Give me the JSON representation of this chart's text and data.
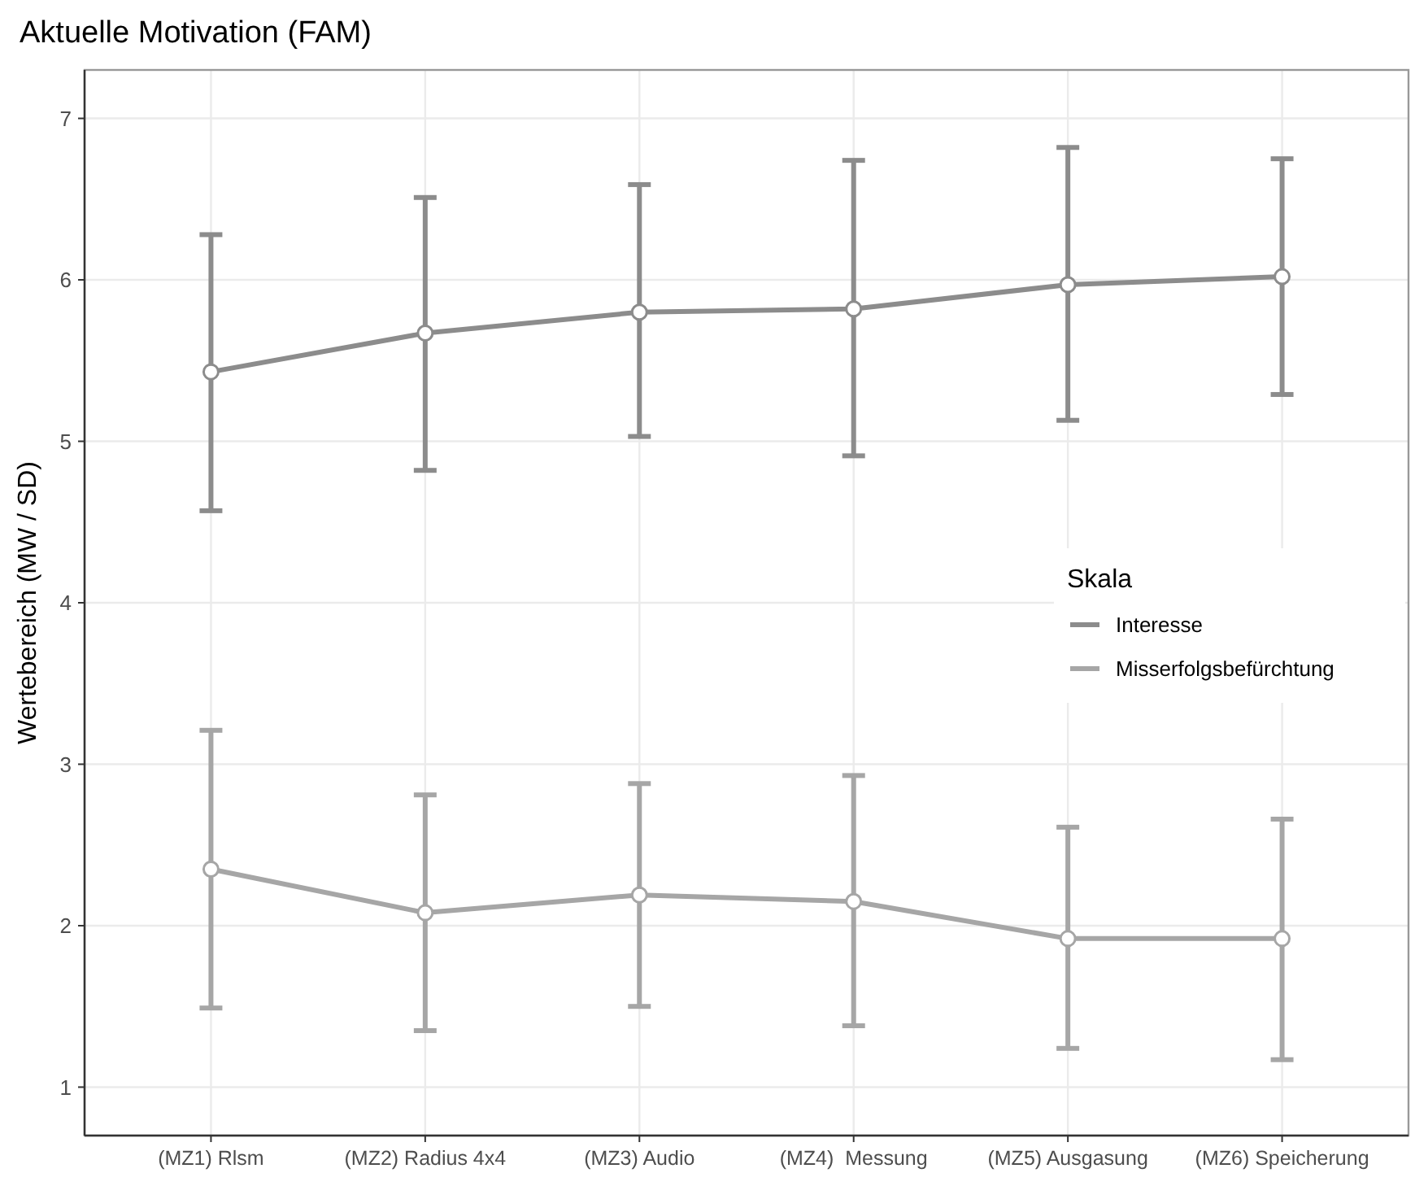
{
  "chart_data": {
    "type": "line",
    "title": "Aktuelle Motivation (FAM)",
    "ylabel": "Wertebereich (MW / SD)",
    "legend_title": "Skala",
    "categories": [
      "(MZ1) Rlsm",
      "(MZ2) Radius 4x4",
      "(MZ3) Audio",
      "(MZ4)  Messung",
      "(MZ5) Ausgasung",
      "(MZ6) Speicherung"
    ],
    "series": [
      {
        "name": "Interesse",
        "color": "#8c8c8c",
        "values": [
          5.43,
          5.67,
          5.8,
          5.82,
          5.97,
          6.02
        ],
        "errors": [
          [
            4.57,
            6.28
          ],
          [
            4.82,
            6.51
          ],
          [
            5.03,
            6.59
          ],
          [
            4.91,
            6.74
          ],
          [
            5.13,
            6.82
          ],
          [
            5.29,
            6.75
          ]
        ]
      },
      {
        "name": "Misserfolgsbefürchtung",
        "color": "#a6a6a6",
        "values": [
          2.35,
          2.08,
          2.19,
          2.15,
          1.92,
          1.92
        ],
        "errors": [
          [
            1.49,
            3.21
          ],
          [
            1.35,
            2.81
          ],
          [
            1.5,
            2.88
          ],
          [
            1.38,
            2.93
          ],
          [
            1.24,
            2.61
          ],
          [
            1.17,
            2.66
          ]
        ]
      }
    ],
    "ylim": [
      0.7,
      7.3
    ],
    "yticks": [
      1,
      2,
      3,
      4,
      5,
      6,
      7
    ],
    "grid": true,
    "legend": "right",
    "marker": "circle",
    "line_style": "solid"
  }
}
